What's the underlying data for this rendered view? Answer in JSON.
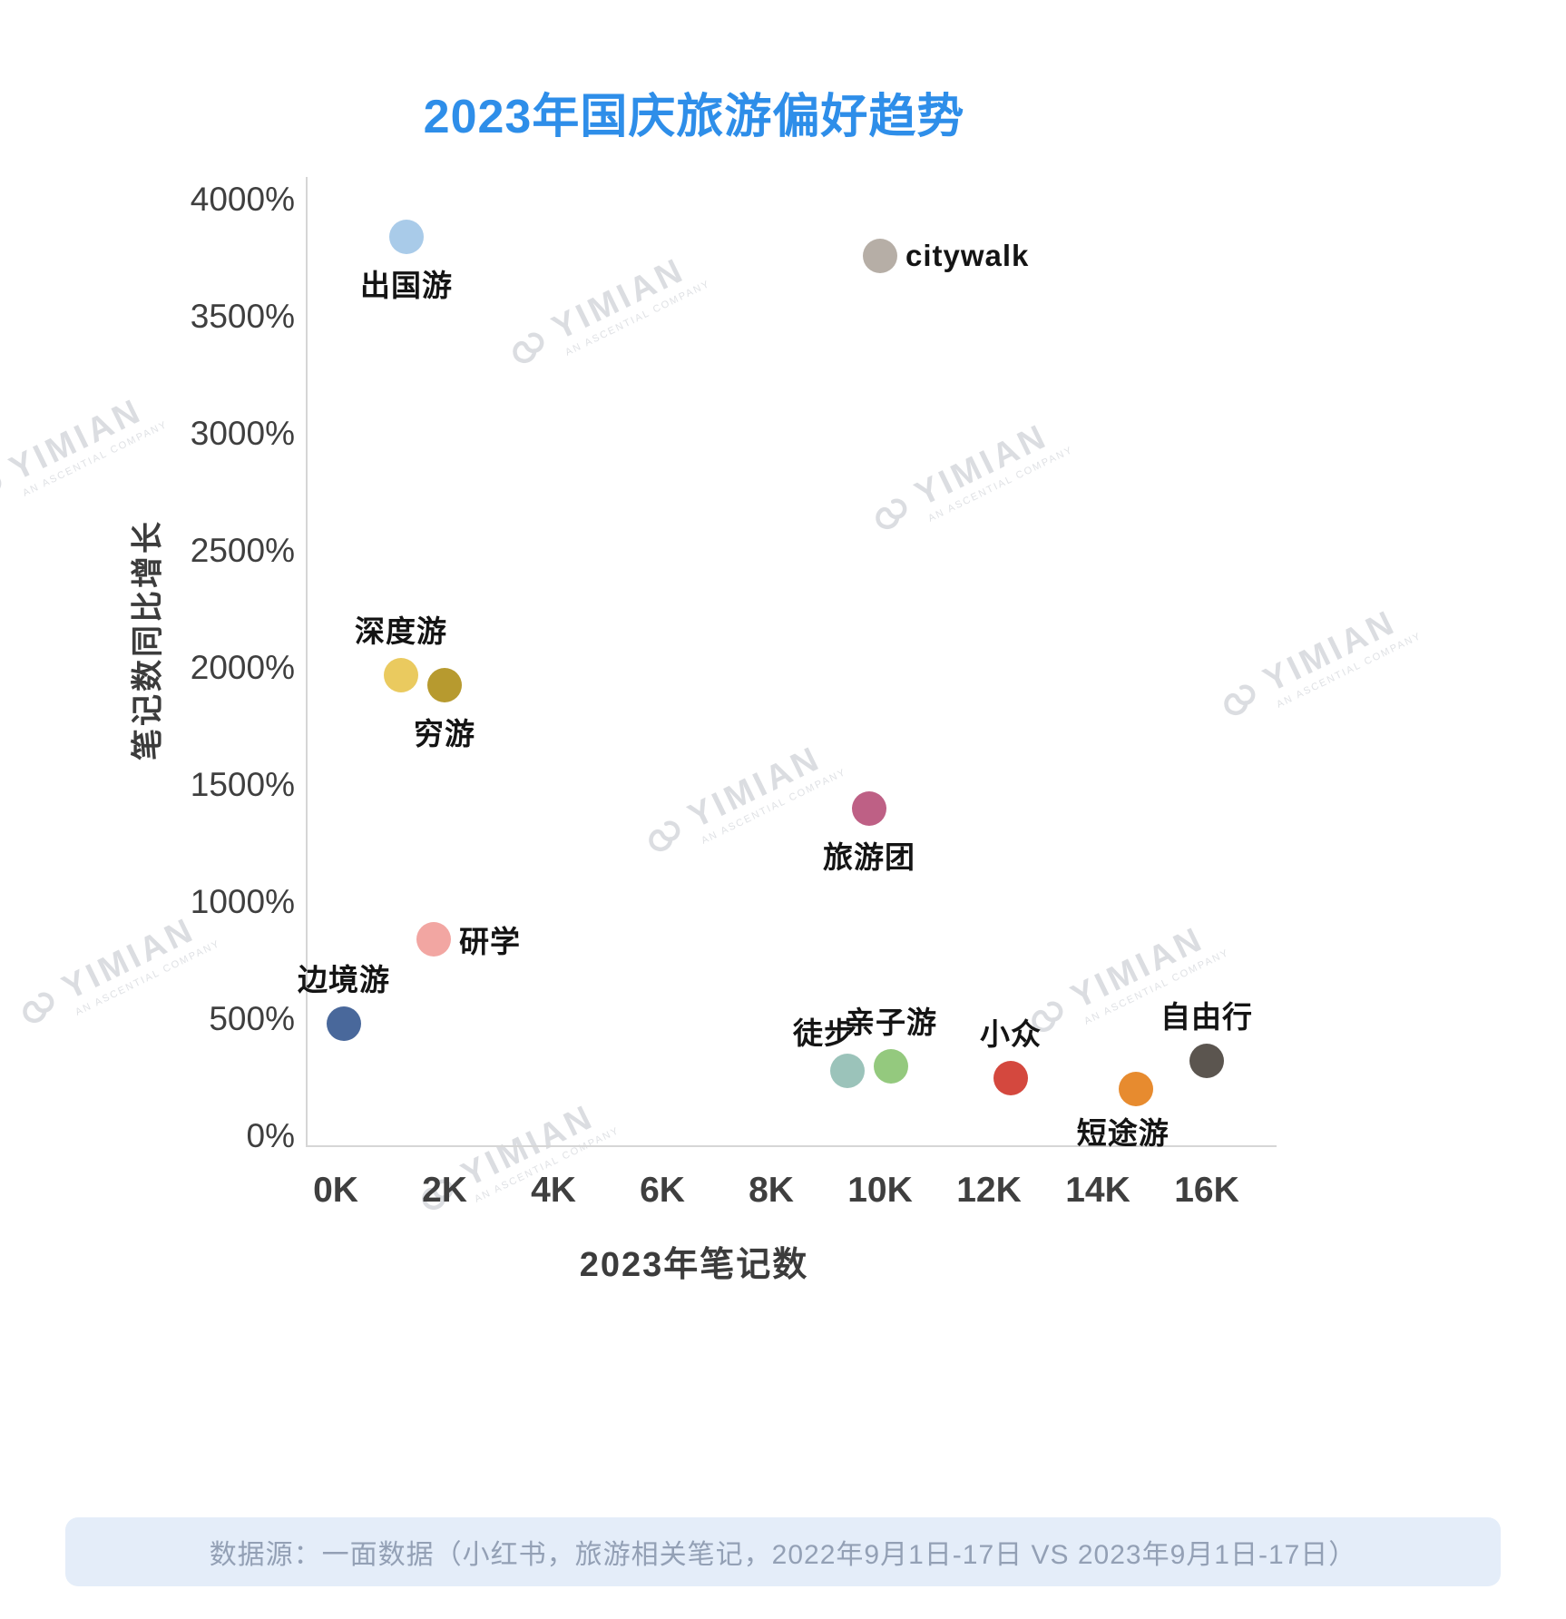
{
  "title": "2023年国庆旅游偏好趋势",
  "watermark": {
    "brand": "YIMIAN",
    "tagline": "AN ASCENTIAL COMPANY"
  },
  "footer": "数据源：一面数据（小红书，旅游相关笔记，2022年9月1日-17日 VS 2023年9月1日-17日）",
  "chart_data": {
    "type": "scatter",
    "title": "2023年国庆旅游偏好趋势",
    "xlabel": "2023年笔记数",
    "ylabel": "笔记数同比增长",
    "xlim": [
      0,
      17000
    ],
    "ylim": [
      0,
      4000
    ],
    "grid": false,
    "x_ticks": [
      "0K",
      "2K",
      "4K",
      "6K",
      "8K",
      "10K",
      "12K",
      "14K",
      "16K"
    ],
    "y_ticks": [
      "0%",
      "500%",
      "1000%",
      "1500%",
      "2000%",
      "2500%",
      "3000%",
      "3500%",
      "4000%"
    ],
    "points": [
      {
        "label": "出国游",
        "x": 1300,
        "y": 3840,
        "color": "#a9cbe9",
        "label_pos": "below"
      },
      {
        "label": "citywalk",
        "x": 10000,
        "y": 3760,
        "color": "#b6aea6",
        "label_pos": "right"
      },
      {
        "label": "深度游",
        "x": 1200,
        "y": 1970,
        "color": "#eaca5f",
        "label_pos": "above"
      },
      {
        "label": "穷游",
        "x": 2000,
        "y": 1925,
        "color": "#b79a2f",
        "label_pos": "below"
      },
      {
        "label": "旅游团",
        "x": 9800,
        "y": 1400,
        "color": "#be6085",
        "label_pos": "below"
      },
      {
        "label": "研学",
        "x": 1800,
        "y": 840,
        "color": "#f2a6a2",
        "label_pos": "right"
      },
      {
        "label": "边境游",
        "x": 150,
        "y": 480,
        "color": "#49689b",
        "label_pos": "above"
      },
      {
        "label": "徒步",
        "x": 9400,
        "y": 280,
        "color": "#9bc3ba",
        "label_pos": "above-left"
      },
      {
        "label": "亲子游",
        "x": 10200,
        "y": 300,
        "color": "#94c97e",
        "label_pos": "above"
      },
      {
        "label": "小众",
        "x": 12400,
        "y": 250,
        "color": "#d4483e",
        "label_pos": "above"
      },
      {
        "label": "短途游",
        "x": 14700,
        "y": 200,
        "color": "#e78b2f",
        "label_pos": "below-left"
      },
      {
        "label": "自由行",
        "x": 16000,
        "y": 320,
        "color": "#5b554f",
        "label_pos": "above"
      }
    ]
  }
}
